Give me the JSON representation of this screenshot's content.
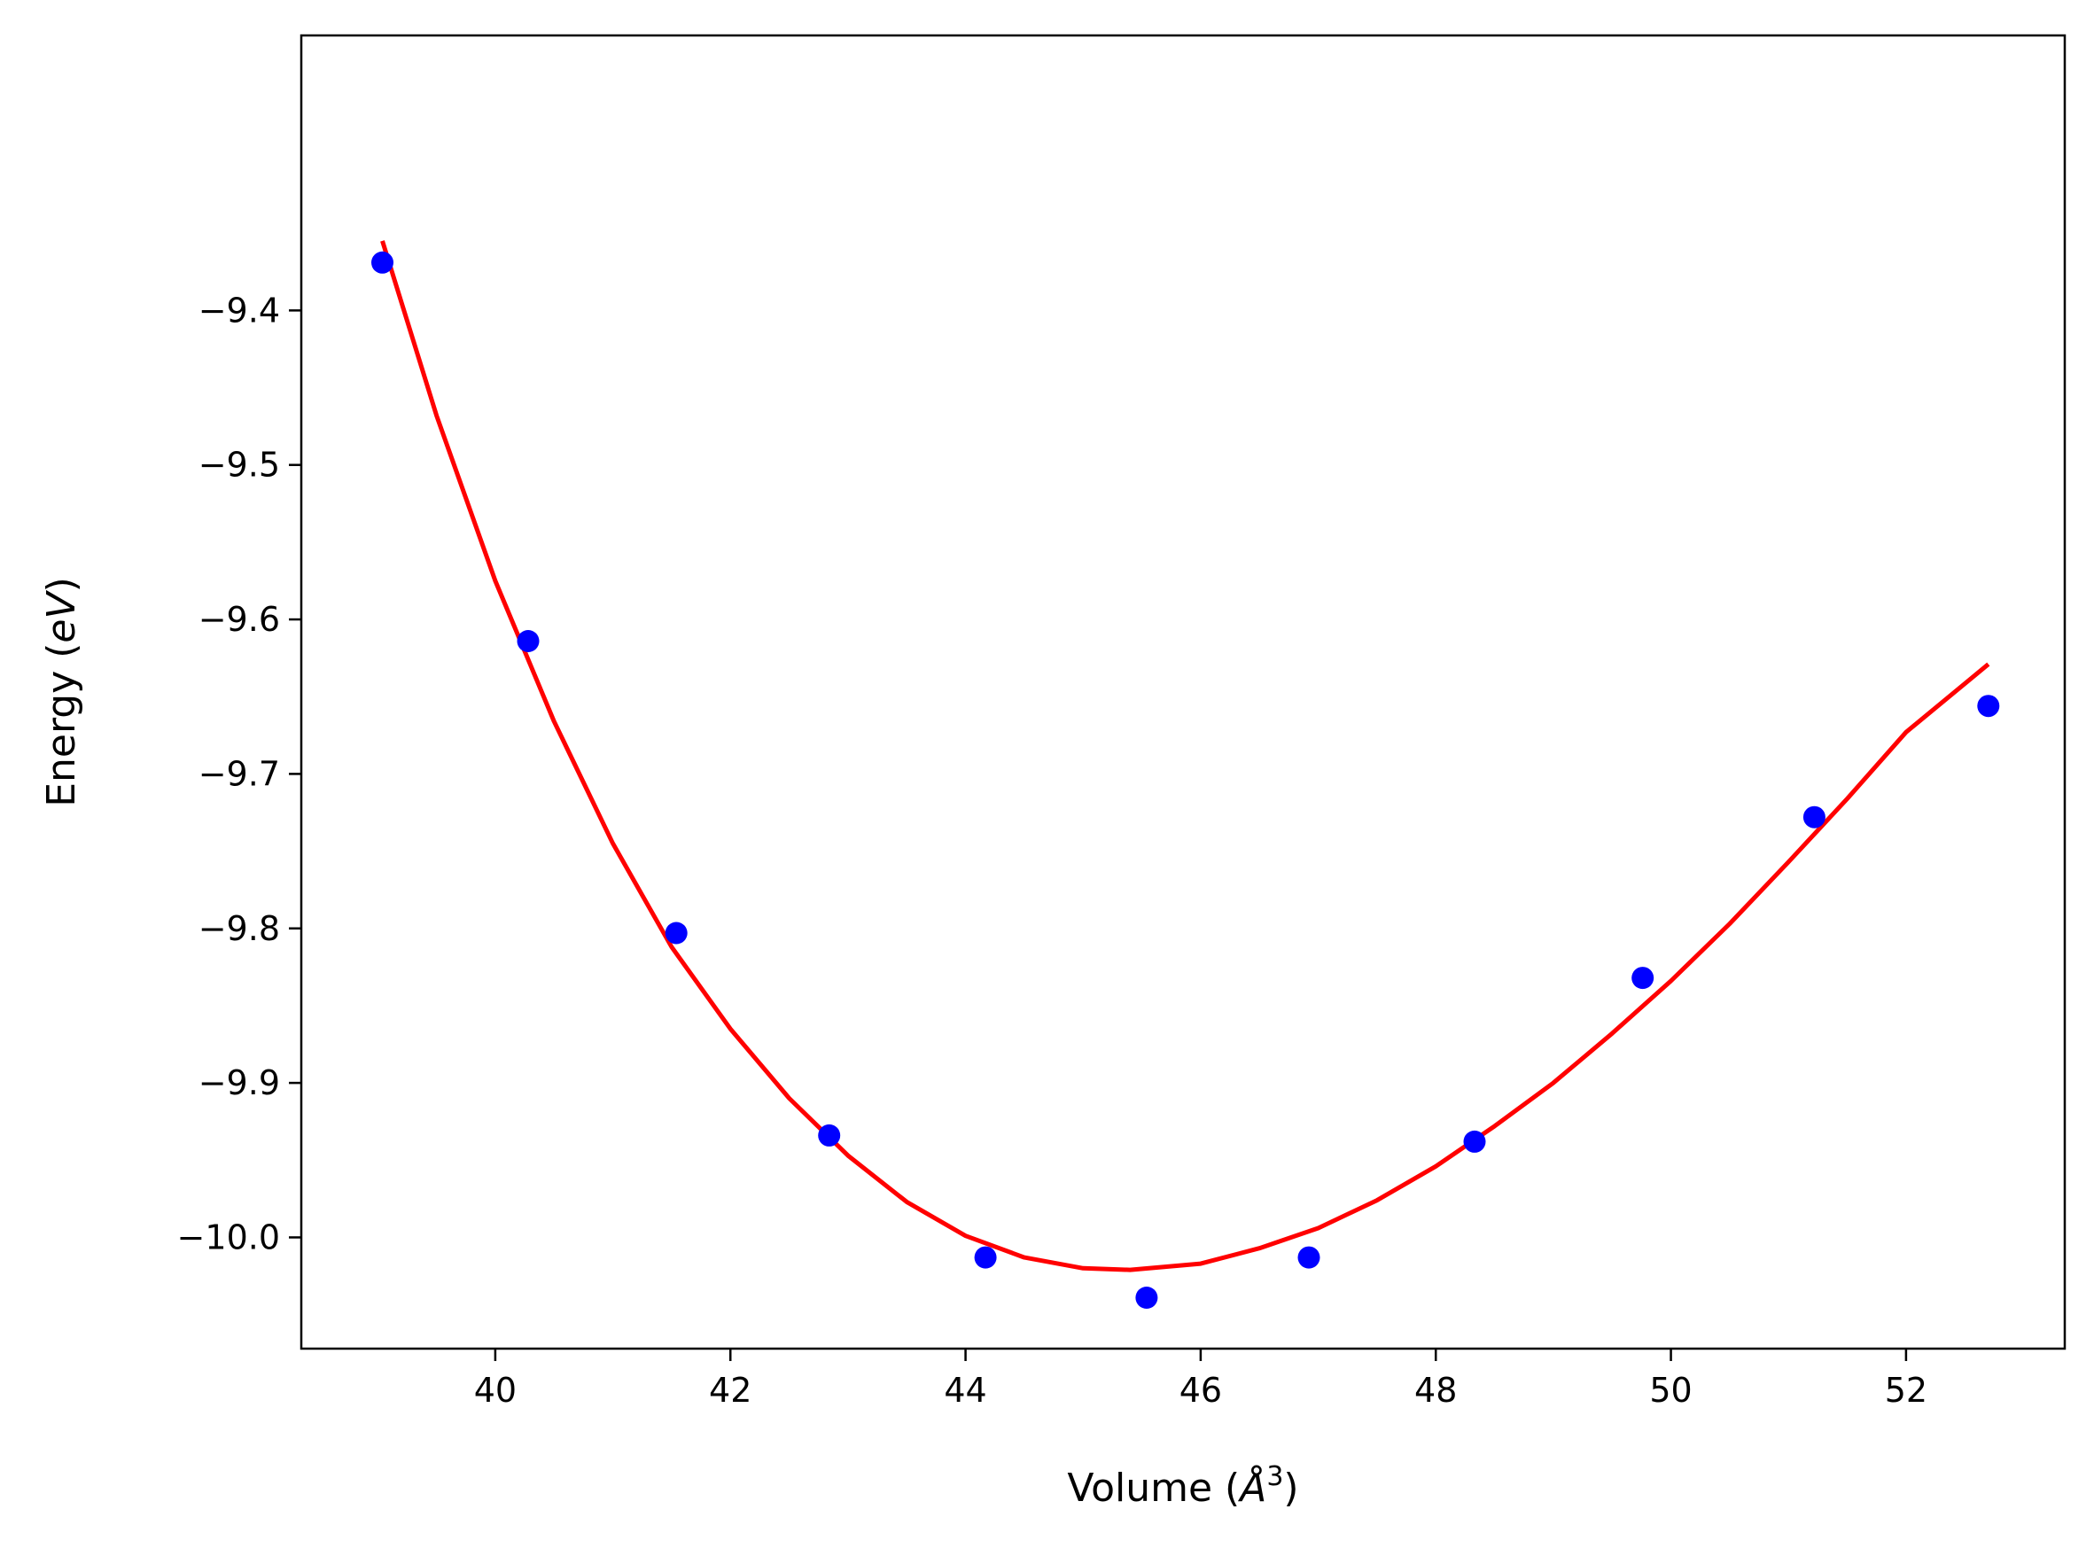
{
  "chart_data": {
    "type": "scatter",
    "title": "",
    "xlabel": {
      "prefix": "Volume (",
      "symbol": "Å",
      "superscript": "3",
      "suffix": ")"
    },
    "ylabel": {
      "prefix": "Energy (",
      "italic": "eV",
      "suffix": ")"
    },
    "xlim": [
      38.35,
      53.35
    ],
    "ylim": [
      -10.072,
      -9.222
    ],
    "xticks": [
      40,
      42,
      44,
      46,
      48,
      50,
      52
    ],
    "xtick_labels": [
      "40",
      "42",
      "44",
      "46",
      "48",
      "50",
      "52"
    ],
    "yticks": [
      -10.0,
      -9.9,
      -9.8,
      -9.7,
      -9.6,
      -9.5,
      -9.4
    ],
    "ytick_labels": [
      "−10.0",
      "−9.9",
      "−9.8",
      "−9.7",
      "−9.6",
      "−9.5",
      "−9.4"
    ],
    "grid": false,
    "series": [
      {
        "kind": "points",
        "color": "#0000ff",
        "x": [
          39.04,
          40.28,
          41.54,
          42.84,
          44.17,
          45.54,
          46.92,
          48.33,
          49.76,
          51.22,
          52.7
        ],
        "y": [
          -9.369,
          -9.614,
          -9.803,
          -9.934,
          -10.013,
          -10.039,
          -10.013,
          -9.938,
          -9.832,
          -9.728,
          -9.656
        ]
      },
      {
        "kind": "fit",
        "color": "#ff0000",
        "x": [
          39.04,
          39.5,
          40.0,
          40.5,
          41.0,
          41.5,
          42.0,
          42.5,
          43.0,
          43.5,
          44.0,
          44.5,
          45.0,
          45.4,
          46.0,
          46.5,
          47.0,
          47.5,
          48.0,
          48.5,
          49.0,
          49.5,
          50.0,
          50.5,
          51.0,
          51.5,
          52.0,
          52.7
        ],
        "y": [
          -9.355,
          -9.468,
          -9.575,
          -9.666,
          -9.745,
          -9.812,
          -9.865,
          -9.91,
          -9.947,
          -9.977,
          -9.999,
          -10.013,
          -10.02,
          -10.021,
          -10.017,
          -10.007,
          -9.994,
          -9.976,
          -9.954,
          -9.928,
          -9.9,
          -9.868,
          -9.834,
          -9.797,
          -9.757,
          -9.716,
          -9.673,
          -9.629
        ]
      }
    ]
  }
}
